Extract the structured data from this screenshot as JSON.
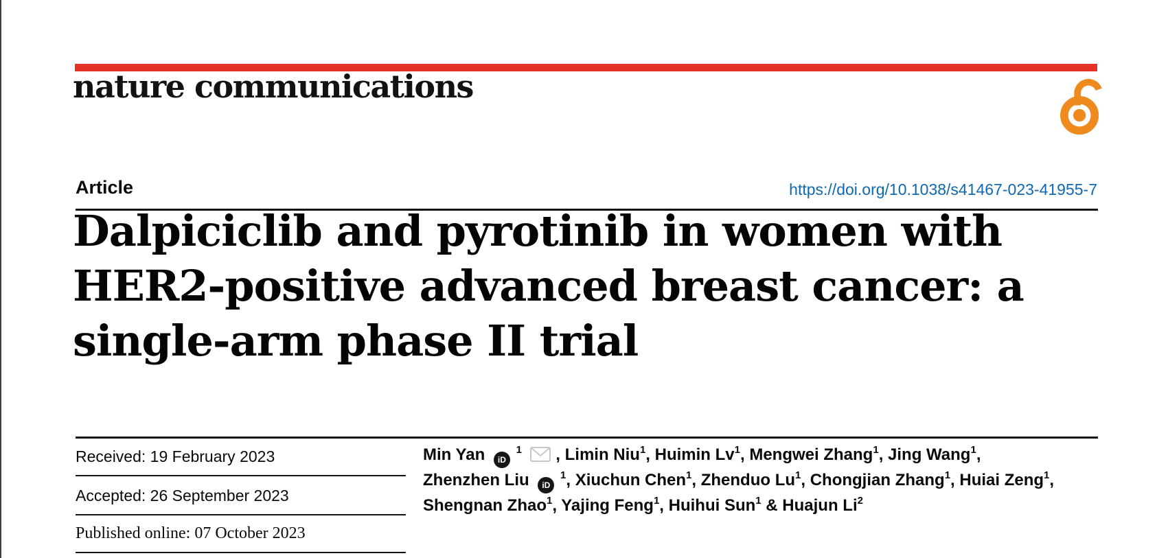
{
  "brand": {
    "journal_name": "nature communications",
    "accent_red": "#e53126",
    "open_access_orange": "#ee8a1e"
  },
  "article": {
    "kicker": "Article",
    "doi_link": "https://doi.org/10.1038/s41467-023-41955-7",
    "doi_color": "#0e68b2",
    "title_lines": [
      "Dalpiciclib and pyrotinib in women with",
      "HER2-positive advanced breast cancer: a",
      "single-arm phase II trial"
    ]
  },
  "dates": {
    "received": "Received: 19 February 2023",
    "accepted": "Accepted: 26 September 2023",
    "published": "Published online: 07 October 2023"
  },
  "icons": {
    "open_access": "open-access-lock-icon",
    "orcid": "orcid-id-icon",
    "orcid_glyph": "iD",
    "email": "envelope-icon"
  },
  "authors": {
    "lines": [
      [
        {
          "name": "Min Yan",
          "orcid": true,
          "sup": "1",
          "email": true,
          "sep": ", "
        },
        {
          "name": "Limin Niu",
          "sup": "1",
          "sep": ", "
        },
        {
          "name": "Huimin Lv",
          "sup": "1",
          "sep": ", "
        },
        {
          "name": "Mengwei Zhang",
          "sup": "1",
          "sep": ", "
        },
        {
          "name": "Jing Wang",
          "sup": "1",
          "sep": ","
        }
      ],
      [
        {
          "name": "Zhenzhen Liu",
          "orcid": true,
          "sup": "1",
          "sep": ", "
        },
        {
          "name": "Xiuchun Chen",
          "sup": "1",
          "sep": ", "
        },
        {
          "name": "Zhenduo Lu",
          "sup": "1",
          "sep": ", "
        },
        {
          "name": "Chongjian Zhang",
          "sup": "1",
          "sep": ", "
        },
        {
          "name": "Huiai Zeng",
          "sup": "1",
          "sep": ","
        }
      ],
      [
        {
          "name": "Shengnan Zhao",
          "sup": "1",
          "sep": ", "
        },
        {
          "name": "Yajing Feng",
          "sup": "1",
          "sep": ", "
        },
        {
          "name": "Huihui Sun",
          "sup": "1",
          "sep": " & "
        },
        {
          "name": "Huajun Li",
          "sup": "2",
          "sep": ""
        }
      ]
    ]
  }
}
